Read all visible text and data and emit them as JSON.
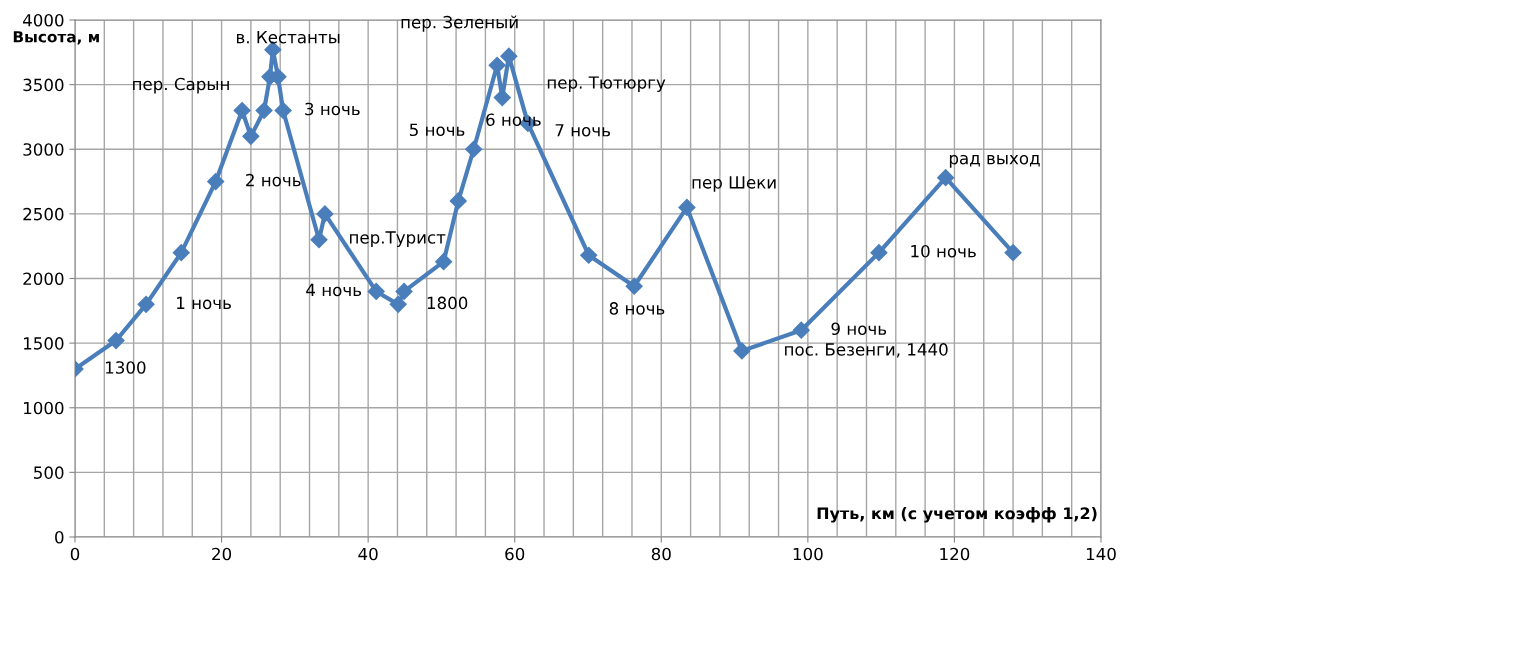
{
  "chart_data": {
    "type": "line",
    "xlabel": "Путь, км (с учетом коэфф 1,2)",
    "ylabel": "Высота, м",
    "series": [
      {
        "color": "#4a7ebb",
        "x": [
          0,
          5.6,
          9.7,
          14.5,
          19.2,
          22.8,
          24.0,
          25.8,
          26.6,
          27.0,
          27.7,
          28.4,
          33.3,
          34.1,
          41.1,
          44.1,
          44.9,
          50.3,
          52.3,
          54.4,
          57.6,
          58.3,
          59.2,
          61.8,
          70.1,
          76.3,
          83.5,
          91.0,
          99.1,
          109.7,
          118.8,
          128.0
        ],
        "values": [
          1300,
          1520,
          1800,
          2200,
          2750,
          3300,
          3100,
          3300,
          3560,
          3770,
          3560,
          3300,
          2300,
          2500,
          1900,
          1800,
          1900,
          2130,
          2600,
          3000,
          3650,
          3400,
          3720,
          3200,
          2180,
          1940,
          2550,
          1440,
          1600,
          2200,
          2780,
          2200
        ]
      }
    ],
    "xlim": [
      0,
      140
    ],
    "xticks": [
      0,
      20,
      40,
      60,
      80,
      100,
      120,
      140
    ],
    "ylim": [
      0,
      4000
    ],
    "yticks": [
      0,
      500,
      1000,
      1500,
      2000,
      2500,
      3000,
      3500,
      4000
    ],
    "grid": true,
    "marker": "diamond",
    "line_style": "solid",
    "annotations": [
      {
        "text": "1300",
        "x": 0,
        "y": 1300
      },
      {
        "text": "1 ночь",
        "x": 9.7,
        "y": 1800
      },
      {
        "text": "пер. Сарын",
        "x": 22.8,
        "y": 3300
      },
      {
        "text": "2 ночь",
        "x": 19.2,
        "y": 2750
      },
      {
        "text": "в. Кестанты",
        "x": 27.0,
        "y": 3770
      },
      {
        "text": "3 ночь",
        "x": 28.4,
        "y": 3300
      },
      {
        "text": "пер.Турист",
        "x": 34.1,
        "y": 2500
      },
      {
        "text": "4 ночь",
        "x": 41.1,
        "y": 1900
      },
      {
        "text": "1800",
        "x": 44.1,
        "y": 1800
      },
      {
        "text": "5 ночь",
        "x": 54.4,
        "y": 3000
      },
      {
        "text": "пер. Зеленый",
        "x": 57.6,
        "y": 3650
      },
      {
        "text": "6 ночь",
        "x": 58.3,
        "y": 3400
      },
      {
        "text": "пер. Тютюргу",
        "x": 59.2,
        "y": 3720
      },
      {
        "text": "7 ночь",
        "x": 61.8,
        "y": 3200
      },
      {
        "text": "8 ночь",
        "x": 76.3,
        "y": 1940
      },
      {
        "text": "пер Шеки",
        "x": 83.5,
        "y": 2550
      },
      {
        "text": "пос. Безенги, 1440",
        "x": 91.0,
        "y": 1440
      },
      {
        "text": "9 ночь",
        "x": 99.1,
        "y": 1600
      },
      {
        "text": "10 ночь",
        "x": 109.7,
        "y": 2200
      },
      {
        "text": "рад выход",
        "x": 118.8,
        "y": 2780
      }
    ]
  }
}
